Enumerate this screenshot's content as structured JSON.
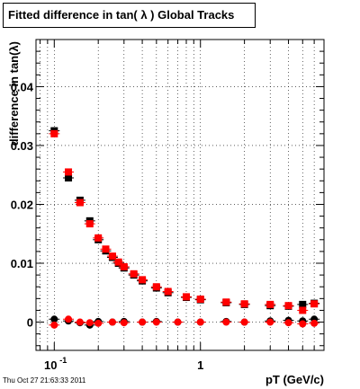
{
  "header": {
    "title": "Fitted difference in tan( λ )  Global Tracks"
  },
  "footer": {
    "timestamp": "Thu Oct 27 21:63:33 2011"
  },
  "colors": {
    "series_black": "#000000",
    "series_red": "#ff0000",
    "grid": "#000000"
  },
  "chart_data": {
    "type": "scatter",
    "title": "Fitted difference in tan( λ )  Global Tracks",
    "xlabel": "pT (GeV/c)",
    "ylabel": "difference in tan(λ)",
    "x_scale": "log",
    "xlim": [
      0.075,
      7.0
    ],
    "ylim": [
      -0.0048,
      0.048
    ],
    "x_ticks": [
      {
        "value": 0.1,
        "base": "10",
        "exp": "-1"
      },
      {
        "value": 1,
        "label": "1"
      }
    ],
    "y_ticks": [
      {
        "value": 0,
        "label": "0"
      },
      {
        "value": 0.01,
        "label": "0.01"
      },
      {
        "value": 0.02,
        "label": "0.02"
      },
      {
        "value": 0.03,
        "label": "0.03"
      },
      {
        "value": 0.04,
        "label": "0.04"
      }
    ],
    "grid": true,
    "series": [
      {
        "color": "#000000",
        "marker": "square",
        "x": [
          0.1,
          0.125,
          0.15,
          0.175,
          0.2,
          0.225,
          0.25,
          0.275,
          0.3,
          0.35,
          0.4,
          0.5,
          0.6,
          0.8,
          1.0,
          1.5,
          2.0,
          3.0,
          4.0,
          5.0,
          6.0
        ],
        "y": [
          0.0325,
          0.0245,
          0.0207,
          0.0172,
          0.014,
          0.0121,
          0.011,
          0.01,
          0.0092,
          0.008,
          0.007,
          0.0058,
          0.005,
          0.0042,
          0.0038,
          0.0033,
          0.003,
          0.0028,
          0.0027,
          0.003,
          0.0032
        ]
      },
      {
        "color": "#ff0000",
        "marker": "square",
        "x": [
          0.1,
          0.125,
          0.15,
          0.175,
          0.2,
          0.225,
          0.25,
          0.275,
          0.3,
          0.35,
          0.4,
          0.5,
          0.6,
          0.8,
          1.0,
          1.5,
          2.0,
          3.0,
          4.0,
          5.0,
          6.0
        ],
        "y": [
          0.032,
          0.0255,
          0.0203,
          0.0167,
          0.0143,
          0.0124,
          0.0112,
          0.0102,
          0.0094,
          0.0082,
          0.0072,
          0.006,
          0.0052,
          0.0043,
          0.0039,
          0.0034,
          0.0031,
          0.003,
          0.0028,
          0.002,
          0.0031
        ]
      },
      {
        "color": "#000000",
        "marker": "circle",
        "x": [
          0.1,
          0.125,
          0.15,
          0.175,
          0.2,
          0.25,
          0.3,
          0.4,
          0.5,
          0.7,
          1.0,
          1.5,
          2.0,
          3.0,
          4.0,
          5.0,
          6.0
        ],
        "y": [
          0.0005,
          0.0002,
          -0.0001,
          -0.0005,
          0.0001,
          0.0,
          0.0001,
          0.0,
          0.0001,
          0.0,
          0.0,
          0.0001,
          0.0,
          0.0002,
          0.0003,
          0.0002,
          0.0005
        ]
      },
      {
        "color": "#ff0000",
        "marker": "circle",
        "x": [
          0.1,
          0.125,
          0.15,
          0.175,
          0.2,
          0.25,
          0.3,
          0.4,
          0.5,
          0.7,
          1.0,
          1.5,
          2.0,
          3.0,
          4.0,
          5.0,
          6.0
        ],
        "y": [
          -0.0005,
          0.0005,
          0.0,
          -0.0001,
          -0.0002,
          0.0,
          -0.0001,
          0.0,
          0.0,
          0.0,
          0.0,
          0.0,
          0.0,
          0.0,
          -0.0001,
          -0.0003,
          -0.0002
        ]
      }
    ]
  }
}
